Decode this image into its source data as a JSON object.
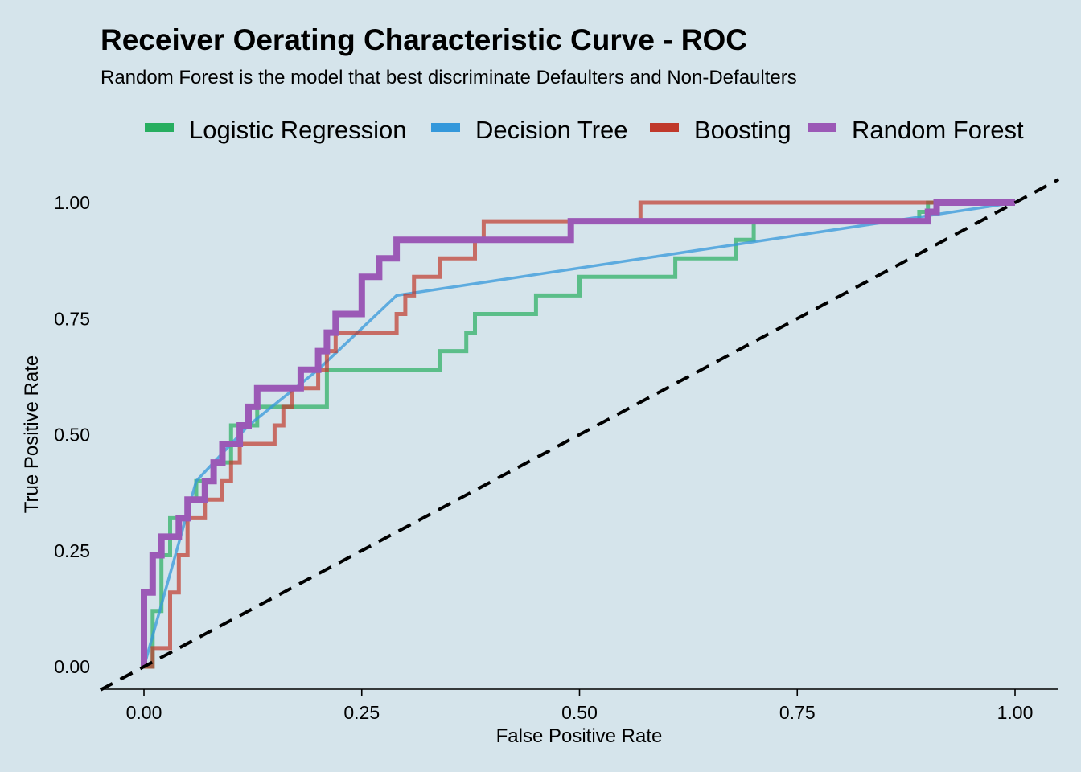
{
  "chart_data": {
    "type": "line",
    "title": "Receiver Oerating Characteristic Curve - ROC",
    "subtitle": "Random Forest is the model that best discriminate Defaulters and Non-Defaulters",
    "xlabel": "False Positive Rate",
    "ylabel": "True Positive Rate",
    "xlim": [
      -0.05,
      1.05
    ],
    "ylim": [
      -0.05,
      1.07
    ],
    "xticks": [
      "0.00",
      "0.25",
      "0.50",
      "0.75",
      "1.00"
    ],
    "yticks": [
      "0.00",
      "0.25",
      "0.50",
      "0.75",
      "1.00"
    ],
    "grid": false,
    "legend_position": "top",
    "reference_line": {
      "style": "dashed",
      "color": "#000000",
      "x": [
        -0.05,
        1.05
      ],
      "y": [
        -0.05,
        1.05
      ]
    },
    "series": [
      {
        "name": "Logistic Regression",
        "color": "#27ae60",
        "x": [
          0,
          0.01,
          0.01,
          0.02,
          0.02,
          0.03,
          0.03,
          0.05,
          0.05,
          0.06,
          0.06,
          0.08,
          0.08,
          0.1,
          0.1,
          0.13,
          0.13,
          0.21,
          0.21,
          0.34,
          0.34,
          0.37,
          0.37,
          0.38,
          0.38,
          0.45,
          0.45,
          0.46,
          0.46,
          0.5,
          0.5,
          0.51,
          0.51,
          0.61,
          0.61,
          0.62,
          0.62,
          0.68,
          0.68,
          0.7,
          0.7,
          0.89,
          0.89,
          0.9,
          0.9,
          1.0
        ],
        "y": [
          0,
          0,
          0.12,
          0.12,
          0.24,
          0.24,
          0.32,
          0.32,
          0.36,
          0.36,
          0.4,
          0.4,
          0.44,
          0.44,
          0.52,
          0.52,
          0.56,
          0.56,
          0.64,
          0.64,
          0.68,
          0.68,
          0.72,
          0.72,
          0.76,
          0.76,
          0.8,
          0.8,
          0.8,
          0.8,
          0.84,
          0.84,
          0.84,
          0.84,
          0.88,
          0.88,
          0.88,
          0.88,
          0.92,
          0.92,
          0.96,
          0.96,
          0.98,
          0.98,
          1.0,
          1.0
        ]
      },
      {
        "name": "Decision Tree",
        "color": "#3498db",
        "x": [
          0,
          0.06,
          0.12,
          0.2,
          0.29,
          1.0
        ],
        "y": [
          0,
          0.4,
          0.52,
          0.64,
          0.8,
          1.0
        ]
      },
      {
        "name": "Boosting",
        "color": "#c0392b",
        "x": [
          0,
          0.01,
          0.01,
          0.03,
          0.03,
          0.04,
          0.04,
          0.05,
          0.05,
          0.07,
          0.07,
          0.09,
          0.09,
          0.1,
          0.1,
          0.11,
          0.11,
          0.15,
          0.15,
          0.16,
          0.16,
          0.17,
          0.17,
          0.2,
          0.2,
          0.21,
          0.21,
          0.22,
          0.22,
          0.29,
          0.29,
          0.3,
          0.3,
          0.31,
          0.31,
          0.34,
          0.34,
          0.38,
          0.38,
          0.39,
          0.39,
          0.4,
          0.4,
          0.57,
          0.57,
          0.58,
          0.58,
          1.0
        ],
        "y": [
          0,
          0,
          0.04,
          0.04,
          0.16,
          0.16,
          0.24,
          0.24,
          0.32,
          0.32,
          0.36,
          0.36,
          0.4,
          0.4,
          0.44,
          0.44,
          0.48,
          0.48,
          0.52,
          0.52,
          0.56,
          0.56,
          0.6,
          0.6,
          0.64,
          0.64,
          0.68,
          0.68,
          0.72,
          0.72,
          0.76,
          0.76,
          0.8,
          0.8,
          0.84,
          0.84,
          0.88,
          0.88,
          0.92,
          0.92,
          0.96,
          0.96,
          0.96,
          0.96,
          1.0,
          1.0,
          1.0,
          1.0
        ]
      },
      {
        "name": "Random Forest",
        "color": "#9b59b6",
        "x": [
          0,
          0,
          0.01,
          0.01,
          0.02,
          0.02,
          0.04,
          0.04,
          0.05,
          0.05,
          0.07,
          0.07,
          0.08,
          0.08,
          0.09,
          0.09,
          0.11,
          0.11,
          0.12,
          0.12,
          0.13,
          0.13,
          0.14,
          0.14,
          0.18,
          0.18,
          0.2,
          0.2,
          0.21,
          0.21,
          0.22,
          0.22,
          0.25,
          0.25,
          0.27,
          0.27,
          0.29,
          0.29,
          0.49,
          0.49,
          0.9,
          0.9,
          0.91,
          0.91,
          1.0
        ],
        "y": [
          0,
          0.16,
          0.16,
          0.24,
          0.24,
          0.28,
          0.28,
          0.32,
          0.32,
          0.36,
          0.36,
          0.4,
          0.4,
          0.44,
          0.44,
          0.48,
          0.48,
          0.52,
          0.52,
          0.56,
          0.56,
          0.6,
          0.6,
          0.6,
          0.6,
          0.64,
          0.64,
          0.68,
          0.68,
          0.72,
          0.72,
          0.76,
          0.76,
          0.84,
          0.84,
          0.88,
          0.88,
          0.92,
          0.92,
          0.96,
          0.96,
          0.98,
          0.98,
          1.0,
          1.0
        ]
      }
    ]
  }
}
